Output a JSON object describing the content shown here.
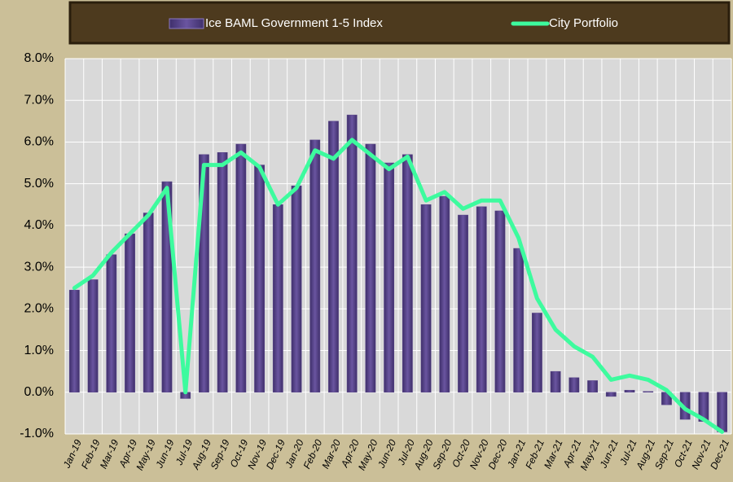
{
  "chart_data": {
    "type": "combo",
    "categories": [
      "Jan-19",
      "Feb-19",
      "Mar-19",
      "Apr-19",
      "May-19",
      "Jun-19",
      "Jul-19",
      "Aug-19",
      "Sep-19",
      "Oct-19",
      "Nov-19",
      "Dec-19",
      "Jan-20",
      "Feb-20",
      "Mar-20",
      "Apr-20",
      "May-20",
      "Jun-20",
      "Jul-20",
      "Aug-20",
      "Sep-20",
      "Oct-20",
      "Nov-20",
      "Dec-20",
      "Jan-21",
      "Feb-21",
      "Mar-21",
      "Apr-21",
      "May-21",
      "Jun-21",
      "Jul-21",
      "Aug-21",
      "Sep-21",
      "Oct-21",
      "Nov-21",
      "Dec-21"
    ],
    "series": [
      {
        "name": "Ice BAML Government 1-5 Index",
        "type": "bar",
        "color": "#5a468a",
        "values": [
          2.45,
          2.7,
          3.3,
          3.8,
          4.3,
          5.05,
          -0.15,
          5.7,
          5.75,
          5.95,
          5.45,
          4.5,
          4.95,
          6.05,
          6.5,
          6.65,
          5.95,
          5.5,
          5.7,
          4.5,
          4.7,
          4.25,
          4.45,
          4.35,
          3.45,
          1.9,
          0.5,
          0.35,
          0.28,
          -0.1,
          0.05,
          0.02,
          -0.3,
          -0.65,
          -0.7,
          -0.95
        ]
      },
      {
        "name": "City Portfolio",
        "type": "line",
        "color": "#3dfb9e",
        "values": [
          2.5,
          2.8,
          3.35,
          3.8,
          4.25,
          4.9,
          0.0,
          5.45,
          5.45,
          5.75,
          5.4,
          4.5,
          4.9,
          5.8,
          5.6,
          6.05,
          5.7,
          5.35,
          5.65,
          4.6,
          4.8,
          4.4,
          4.6,
          4.6,
          3.7,
          2.25,
          1.5,
          1.1,
          0.85,
          0.3,
          0.4,
          0.3,
          0.05,
          -0.4,
          -0.65,
          -0.95
        ]
      }
    ],
    "ylim": [
      -1,
      8
    ],
    "yticks": [
      {
        "value": -1,
        "label": "-1.0%"
      },
      {
        "value": 0,
        "label": "0.0%"
      },
      {
        "value": 1,
        "label": "1.0%"
      },
      {
        "value": 2,
        "label": "2.0%"
      },
      {
        "value": 3,
        "label": "3.0%"
      },
      {
        "value": 4,
        "label": "4.0%"
      },
      {
        "value": 5,
        "label": "5.0%"
      },
      {
        "value": 6,
        "label": "6.0%"
      },
      {
        "value": 7,
        "label": "7.0%"
      },
      {
        "value": 8,
        "label": "8.0%"
      }
    ],
    "grid": true,
    "legend": "top"
  }
}
